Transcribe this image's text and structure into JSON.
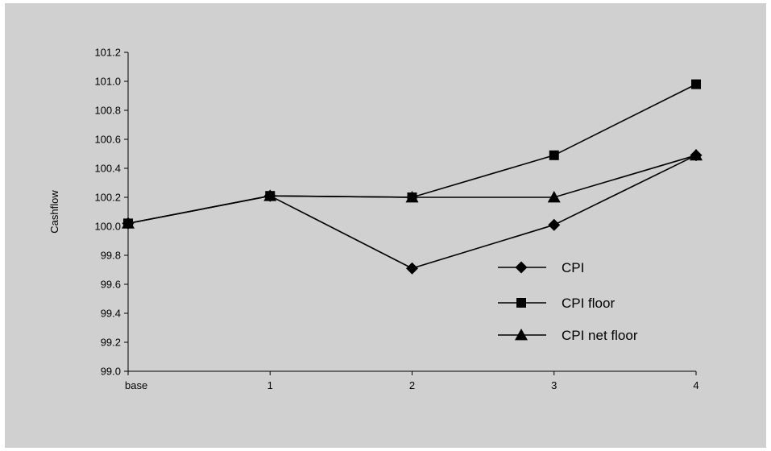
{
  "chart_data": {
    "type": "line",
    "title": "",
    "xlabel": "",
    "ylabel": "Cashflow",
    "categories": [
      "base",
      "1",
      "2",
      "3",
      "4"
    ],
    "ylim": [
      99.0,
      101.2
    ],
    "yticks": [
      "99.0",
      "99.2",
      "99.4",
      "99.6",
      "99.8",
      "100.0",
      "100.2",
      "100.4",
      "100.6",
      "100.8",
      "101.0",
      "101.2"
    ],
    "grid": false,
    "legend_position": "right",
    "series": [
      {
        "name": "CPI",
        "marker": "diamond",
        "values": [
          100.02,
          100.21,
          99.71,
          100.01,
          100.49
        ]
      },
      {
        "name": "CPI floor",
        "marker": "square",
        "values": [
          100.02,
          100.21,
          100.2,
          100.49,
          100.98
        ]
      },
      {
        "name": "CPI net floor",
        "marker": "triangle",
        "values": [
          100.02,
          100.21,
          100.2,
          100.2,
          100.49
        ]
      }
    ],
    "colors": {
      "background": "#d0d0d0",
      "line": "#000000",
      "marker": "#000000"
    }
  }
}
